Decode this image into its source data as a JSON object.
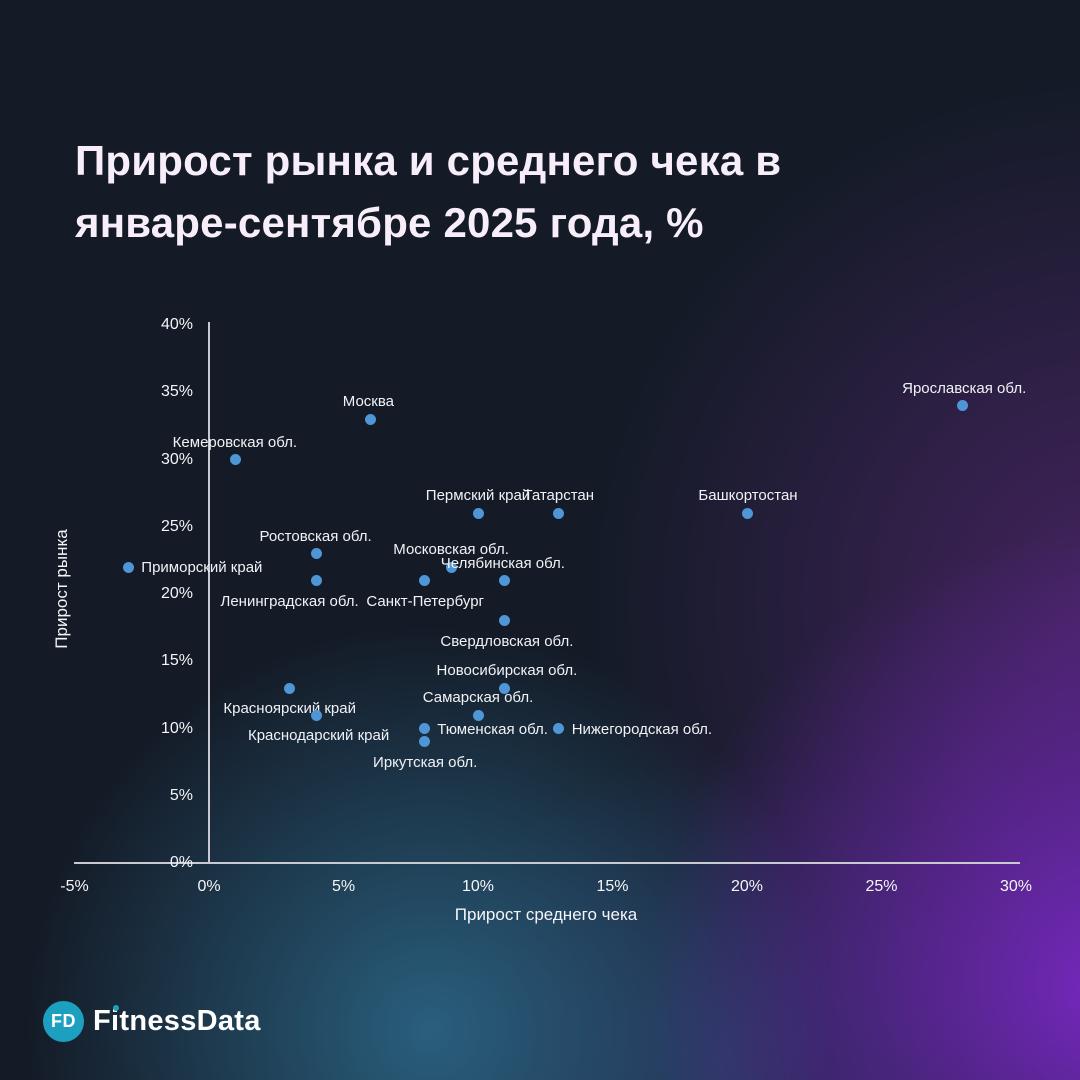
{
  "title": {
    "line1": "Прирост рынка и среднего чека в",
    "line2": "январе-сентябре 2025 года, %"
  },
  "logo": {
    "badge": "FD",
    "name": "FitnessData"
  },
  "chart_data": {
    "type": "scatter",
    "title": "Прирост рынка и среднего чека в январе-сентябре 2025 года, %",
    "xlabel": "Прирост среднего чека",
    "ylabel": "Прирост рынка",
    "xlim": [
      -5,
      30
    ],
    "ylim": [
      0,
      40
    ],
    "grid": false,
    "point_color": "#4e96d5",
    "x_ticks": [
      {
        "v": -5,
        "label": "-5%"
      },
      {
        "v": 0,
        "label": "0%"
      },
      {
        "v": 5,
        "label": "5%"
      },
      {
        "v": 10,
        "label": "10%"
      },
      {
        "v": 15,
        "label": "15%"
      },
      {
        "v": 20,
        "label": "20%"
      },
      {
        "v": 25,
        "label": "25%"
      },
      {
        "v": 30,
        "label": "30%"
      }
    ],
    "y_ticks": [
      {
        "v": 0,
        "label": "0%"
      },
      {
        "v": 5,
        "label": "5%"
      },
      {
        "v": 10,
        "label": "10%"
      },
      {
        "v": 15,
        "label": "15%"
      },
      {
        "v": 20,
        "label": "20%"
      },
      {
        "v": 25,
        "label": "25%"
      },
      {
        "v": 30,
        "label": "30%"
      },
      {
        "v": 35,
        "label": "35%"
      },
      {
        "v": 40,
        "label": "40%"
      }
    ],
    "points": [
      {
        "name": "Ярославская обл.",
        "x": 28,
        "y": 34,
        "label_pos": "above",
        "dx": 2
      },
      {
        "name": "Москва",
        "x": 6,
        "y": 33,
        "label_pos": "above",
        "dx": -2
      },
      {
        "name": "Кемеровская обл.",
        "x": 1,
        "y": 30,
        "label_pos": "above",
        "dx": -1
      },
      {
        "name": "Пермский край",
        "x": 10,
        "y": 26,
        "label_pos": "above",
        "dx": 0
      },
      {
        "name": "Татарстан",
        "x": 13,
        "y": 26,
        "label_pos": "above",
        "dx": 0
      },
      {
        "name": "Башкортостан",
        "x": 20,
        "y": 26,
        "label_pos": "above",
        "dx": 1
      },
      {
        "name": "Ростовская обл.",
        "x": 4,
        "y": 23,
        "label_pos": "above",
        "dx": -1
      },
      {
        "name": "Московская обл.",
        "x": 9,
        "y": 22,
        "label_pos": "above",
        "dx": 0
      },
      {
        "name": "Приморский край",
        "x": -3,
        "y": 22,
        "label_pos": "right",
        "dx": 0
      },
      {
        "name": "Челябинская обл.",
        "x": 11,
        "y": 21,
        "label_pos": "above",
        "dx": -2
      },
      {
        "name": "Ленинградская обл.",
        "x": 4,
        "y": 21,
        "label_pos": "below",
        "dx": -27
      },
      {
        "name": "Санкт-Петербург",
        "x": 8,
        "y": 21,
        "label_pos": "below",
        "dx": 1
      },
      {
        "name": "Свердловская обл.",
        "x": 11,
        "y": 18,
        "label_pos": "below",
        "dx": 2
      },
      {
        "name": "Красноярский край",
        "x": 3,
        "y": 13,
        "label_pos": "below",
        "dx": 0
      },
      {
        "name": "Новосибирская обл.",
        "x": 11,
        "y": 13,
        "label_pos": "above",
        "dx": 2
      },
      {
        "name": "Самарская обл.",
        "x": 10,
        "y": 11,
        "label_pos": "above",
        "dx": 0
      },
      {
        "name": "Краснодарский край",
        "x": 4,
        "y": 11,
        "label_pos": "below",
        "dx": 2
      },
      {
        "name": "Тюменская обл.",
        "x": 8,
        "y": 10,
        "label_pos": "right",
        "dx": 0
      },
      {
        "name": "Нижегородская обл.",
        "x": 13,
        "y": 10,
        "label_pos": "right",
        "dx": 0
      },
      {
        "name": "Иркутская обл.",
        "x": 8,
        "y": 9,
        "label_pos": "below",
        "dx": 1
      }
    ]
  }
}
